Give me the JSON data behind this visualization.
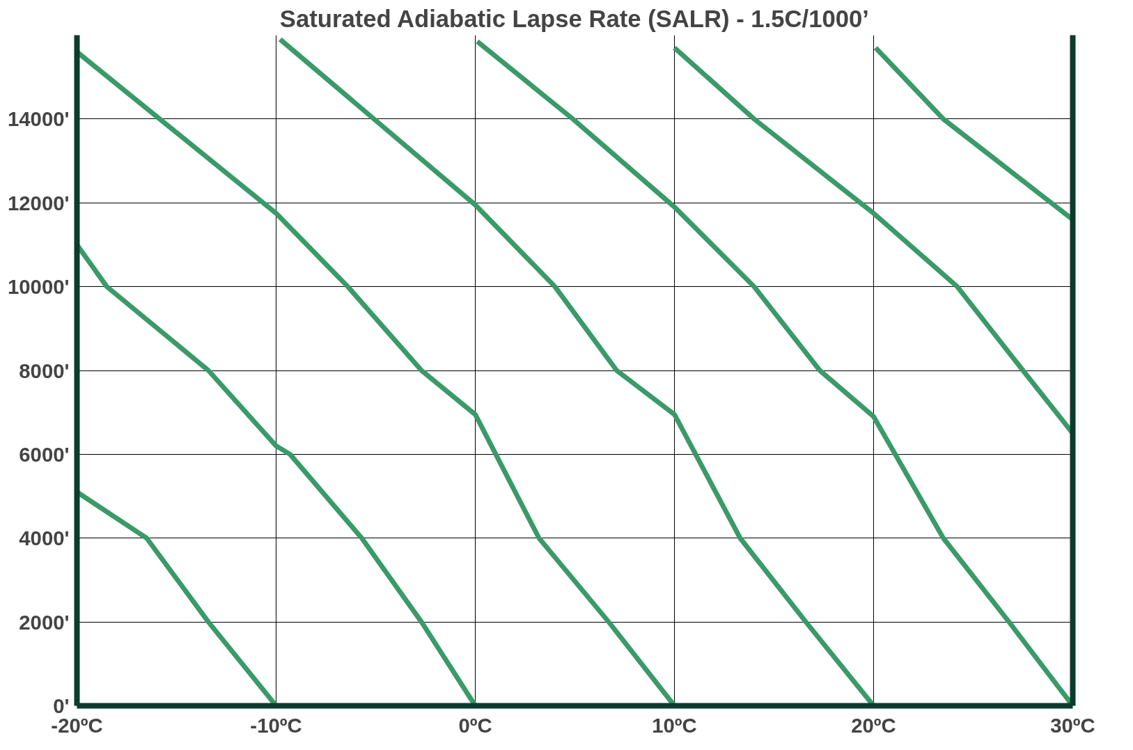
{
  "chart_data": {
    "type": "line",
    "title": "Saturated Adiabatic Lapse Rate (SALR) - 1.5C/1000’",
    "xlim": [
      -20,
      30
    ],
    "ylim": [
      0,
      16000
    ],
    "xticks": [
      {
        "value": -20,
        "label": "-20ºC"
      },
      {
        "value": -10,
        "label": "-10ºC"
      },
      {
        "value": 0,
        "label": "0ºC"
      },
      {
        "value": 10,
        "label": "10ºC"
      },
      {
        "value": 20,
        "label": "20ºC"
      },
      {
        "value": 30,
        "label": "30ºC"
      }
    ],
    "yticks": [
      {
        "value": 0,
        "label": "0'"
      },
      {
        "value": 2000,
        "label": "2000'"
      },
      {
        "value": 4000,
        "label": "4000'"
      },
      {
        "value": 6000,
        "label": "6000'"
      },
      {
        "value": 8000,
        "label": "8000'"
      },
      {
        "value": 10000,
        "label": "10000'"
      },
      {
        "value": 12000,
        "label": "12000'"
      },
      {
        "value": 14000,
        "label": "14000'"
      }
    ],
    "grid": true,
    "marker": "none",
    "line_style": "solid",
    "series": [
      {
        "color": "#3a9a68",
        "x": [
          -20,
          -16.5,
          -13.4,
          -10
        ],
        "values": [
          5100,
          4000,
          2000,
          0
        ]
      },
      {
        "color": "#3a9a68",
        "x": [
          -20,
          -18.5,
          -13.4,
          -10,
          -9.3,
          -5.7,
          -2.7,
          0
        ],
        "values": [
          11000,
          10000,
          8000,
          6200,
          6000,
          4000,
          2000,
          0
        ]
      },
      {
        "color": "#3a9a68",
        "x": [
          -20,
          -10,
          -6.4,
          -2.7,
          0,
          3.2,
          6.7,
          10
        ],
        "values": [
          15600,
          11750,
          10000,
          8000,
          6950,
          4000,
          2000,
          0
        ]
      },
      {
        "color": "#3a9a68",
        "x": [
          -9.8,
          0,
          4.0,
          7.1,
          10,
          13.3,
          16.6,
          20
        ],
        "values": [
          15900,
          11950,
          10000,
          8000,
          6950,
          4000,
          2000,
          0
        ]
      },
      {
        "color": "#3a9a68",
        "x": [
          0.1,
          4.9,
          10,
          14.0,
          17.3,
          20,
          23.5,
          26.8,
          30
        ],
        "values": [
          15850,
          14000,
          11900,
          10000,
          8000,
          6900,
          4000,
          2000,
          0
        ]
      },
      {
        "color": "#3a9a68",
        "x": [
          10,
          14.0,
          20,
          24.2,
          27.5,
          30
        ],
        "values": [
          15700,
          14000,
          11750,
          10000,
          8000,
          6500
        ]
      },
      {
        "color": "#3a9a68",
        "x": [
          20.1,
          23.5,
          30
        ],
        "values": [
          15700,
          14000,
          11600
        ]
      }
    ]
  }
}
